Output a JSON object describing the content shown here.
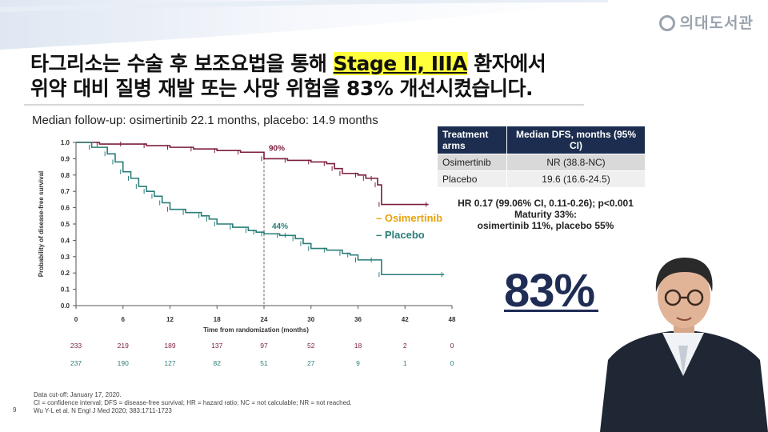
{
  "logo": {
    "text": "의대도서관"
  },
  "title": {
    "line1_part1": "타그리소는 수술 후 보조요법을 통해 ",
    "line1_highlight": "Stage II, IIIA",
    "line1_part2": " 환자에서",
    "line2": "위약 대비 질병 재발 또는 사망 위험을 83% 개선시켰습니다."
  },
  "followup": "Median follow-up: osimertinib 22.1 months, placebo: 14.9 months",
  "table": {
    "headers": [
      "Treatment arms",
      "Median DFS, months (95% CI)"
    ],
    "rows": [
      [
        "Osimertinib",
        "NR (38.8-NC)"
      ],
      [
        "Placebo",
        "19.6 (16.6-24.5)"
      ]
    ]
  },
  "stats": {
    "hr": "HR 0.17 (99.06% CI, 0.11-0.26); p<0.001",
    "maturity": "Maturity 33%:",
    "maturity_detail": "osimertinib 11%, placebo 55%"
  },
  "big_number": "83%",
  "footnotes": [
    "Data cut-off: January 17, 2020.",
    "CI = confidence interval; DFS = disease-free survival; HR = hazard ratio; NC = not calculable; NR = not reached.",
    "Wu Y-L et al. N Engl J Med 2020; 383:1711-1723"
  ],
  "page_number": "9",
  "colors": {
    "osimertinib": "#7b1e3c",
    "placebo": "#2a7d78",
    "accent": "#1f2d55",
    "highlight": "#ffff3a"
  },
  "chart_data": {
    "type": "line",
    "xlabel": "Time from randomization (months)",
    "ylabel": "Probability of disease-free survival",
    "xlim": [
      0,
      48
    ],
    "ylim": [
      0,
      1.0
    ],
    "x_ticks": [
      0,
      6,
      12,
      18,
      24,
      30,
      36,
      42,
      48
    ],
    "y_ticks": [
      0.0,
      0.1,
      0.2,
      0.3,
      0.4,
      0.5,
      0.6,
      0.7,
      0.8,
      0.9,
      1.0
    ],
    "reference_x": 24,
    "series": [
      {
        "name": "Osimertinib",
        "label_at_24": "90%",
        "x": [
          0,
          3,
          6,
          9,
          12,
          15,
          18,
          21,
          24,
          27,
          30,
          32,
          33,
          34,
          36,
          37,
          38,
          38.5,
          39,
          45
        ],
        "y": [
          1.0,
          0.99,
          0.99,
          0.98,
          0.97,
          0.96,
          0.95,
          0.94,
          0.9,
          0.89,
          0.88,
          0.87,
          0.84,
          0.81,
          0.8,
          0.78,
          0.78,
          0.74,
          0.62,
          0.62
        ],
        "at_risk": [
          233,
          219,
          189,
          137,
          97,
          52,
          18,
          2,
          0
        ]
      },
      {
        "name": "Placebo",
        "label_at_24": "44%",
        "x": [
          0,
          2,
          4,
          5,
          6,
          7,
          8,
          9,
          10,
          11,
          12,
          14,
          16,
          17,
          18,
          20,
          22,
          23,
          24,
          26,
          27,
          28,
          29,
          30,
          32,
          34,
          35,
          36,
          38,
          39,
          47
        ],
        "y": [
          1.0,
          0.97,
          0.93,
          0.88,
          0.82,
          0.78,
          0.73,
          0.7,
          0.67,
          0.63,
          0.59,
          0.57,
          0.55,
          0.53,
          0.5,
          0.48,
          0.46,
          0.45,
          0.44,
          0.43,
          0.43,
          0.41,
          0.38,
          0.35,
          0.34,
          0.32,
          0.31,
          0.28,
          0.28,
          0.19,
          0.19
        ],
        "at_risk": [
          237,
          190,
          127,
          82,
          51,
          27,
          9,
          1,
          0
        ]
      }
    ]
  }
}
